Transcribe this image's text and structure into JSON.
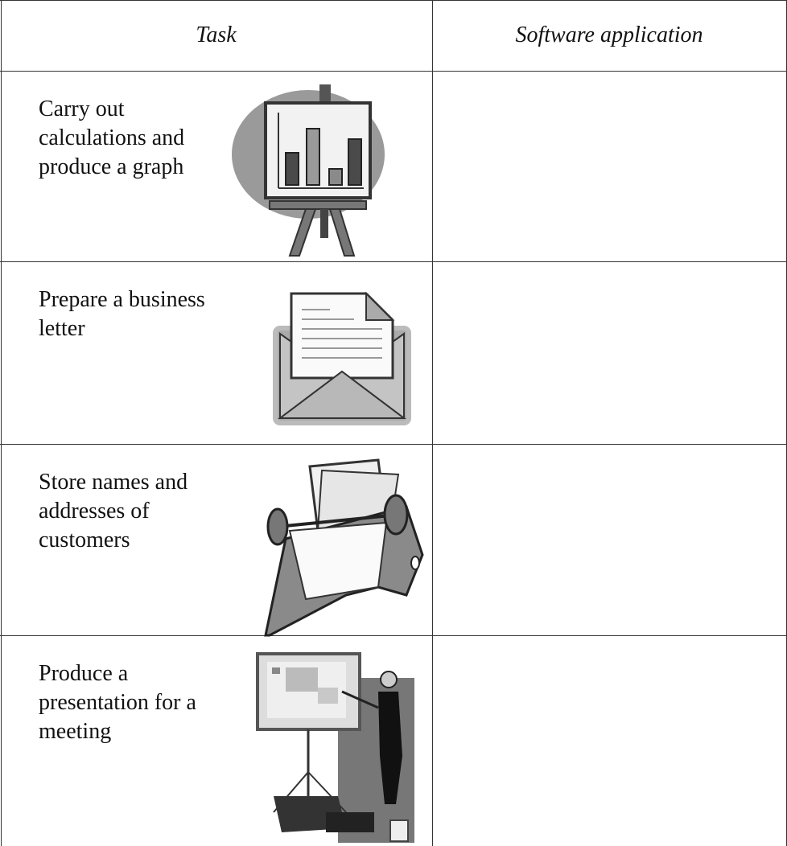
{
  "table": {
    "header": [
      "Task",
      "Software application"
    ],
    "rows": [
      {
        "task": [
          "Carry out",
          "calculations and",
          "produce a graph"
        ]
      },
      {
        "task": [
          "Prepare a business",
          "letter"
        ]
      },
      {
        "task": [
          "Store names and",
          "addresses of",
          "customers"
        ]
      },
      {
        "task": [
          "Produce a",
          "presentation for a",
          "meeting"
        ]
      }
    ]
  }
}
